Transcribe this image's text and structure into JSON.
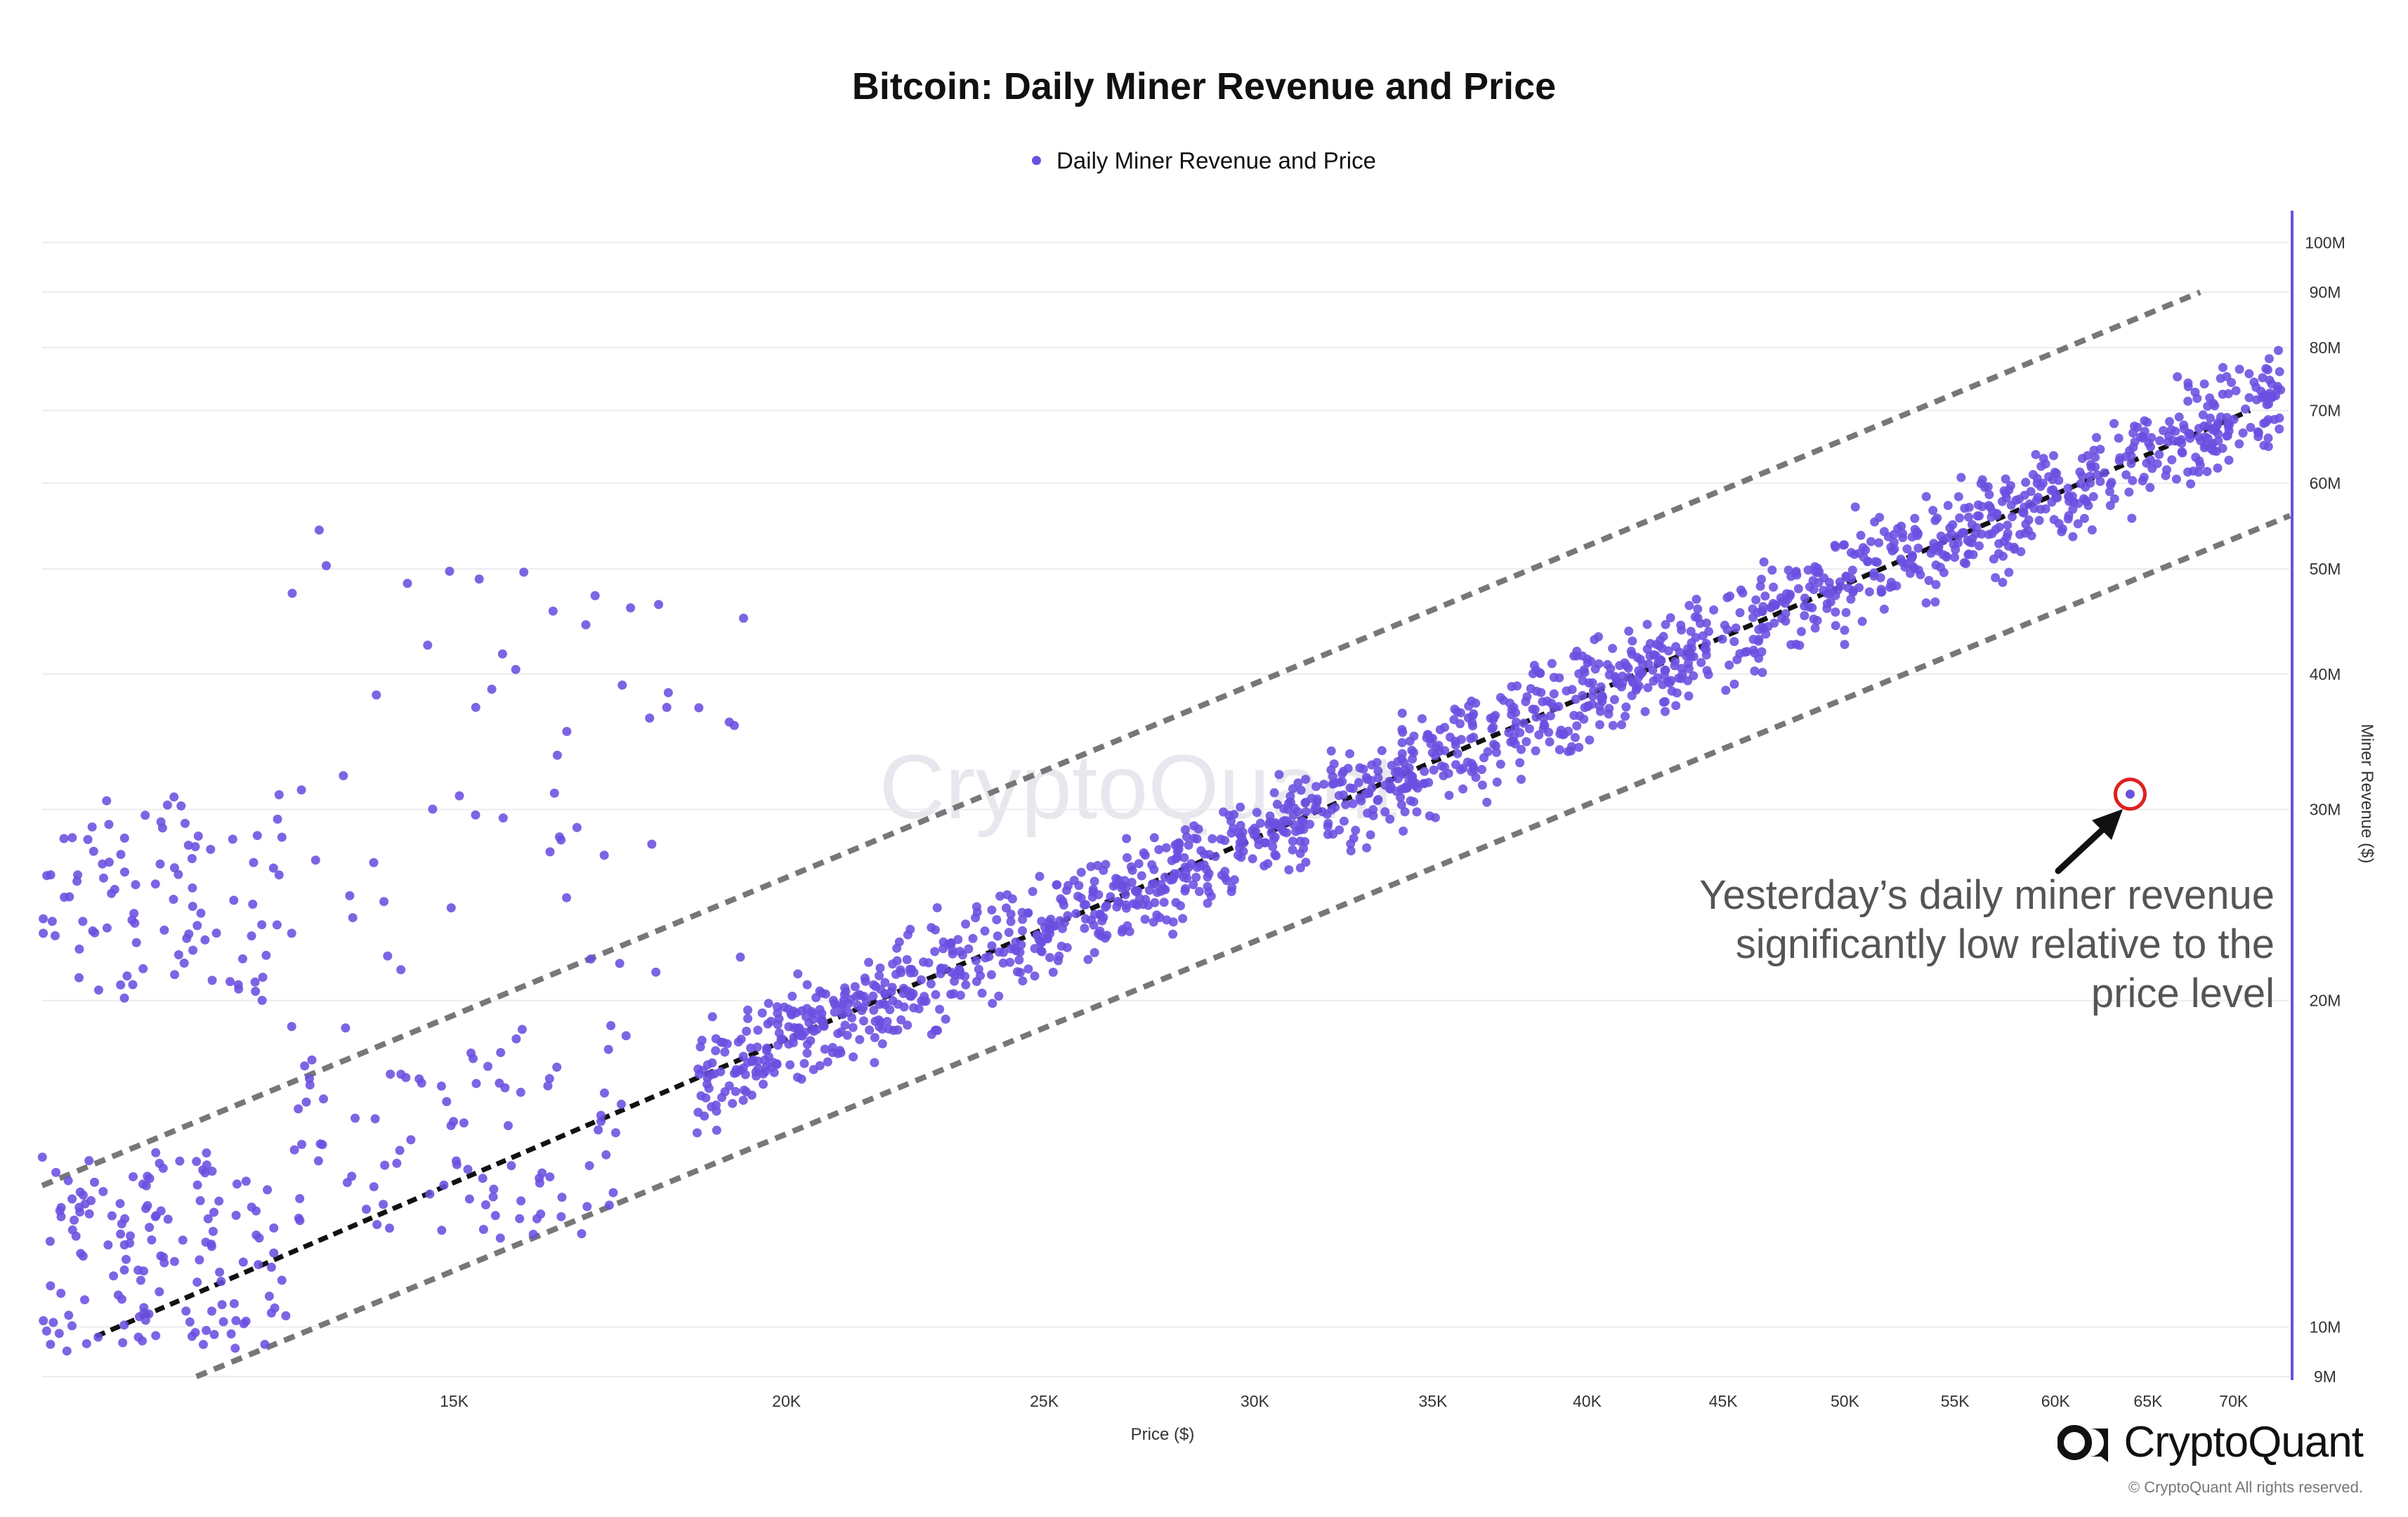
{
  "chart_data": {
    "type": "scatter",
    "title": "Bitcoin: Daily Miner Revenue and Price",
    "legend": [
      "Daily Miner Revenue and Price"
    ],
    "legend_position": "top-center",
    "xlabel": "Price ($)",
    "ylabel": "Miner Revenue ($)",
    "x_scale": "log",
    "y_scale": "log",
    "xlim": [
      10500,
      73500
    ],
    "ylim": [
      9000000,
      107000000
    ],
    "x_ticks": [
      "15K",
      "20K",
      "25K",
      "30K",
      "35K",
      "40K",
      "45K",
      "50K",
      "55K",
      "60K",
      "65K",
      "70K"
    ],
    "y_ticks": [
      "9M",
      "10M",
      "20M",
      "30M",
      "40M",
      "50M",
      "60M",
      "70M",
      "80M",
      "90M",
      "100M"
    ],
    "grid": "horizontal",
    "series": [
      {
        "name": "Daily Miner Revenue and Price",
        "color": "#6b4fe0",
        "clusters": [
          {
            "x_range": [
              10500,
              13000
            ],
            "y_range": [
              9500000,
              14500000
            ],
            "count": 140
          },
          {
            "x_range": [
              10500,
              13000
            ],
            "y_range": [
              20000000,
              31000000
            ],
            "count": 95
          },
          {
            "x_range": [
              13000,
              19500
            ],
            "y_range": [
              21000000,
              55000000
            ],
            "count": 55
          },
          {
            "x_range": [
              13000,
              17500
            ],
            "y_range": [
              12000000,
              19000000
            ],
            "count": 95
          },
          {
            "x_range": [
              18500,
              73000
            ],
            "y_range": [
              0.72,
              1.35
            ],
            "relative_to_trend": true,
            "count": 1550
          }
        ],
        "highlight": {
          "x": 64000,
          "y": 31000000
        }
      }
    ],
    "trend_line": {
      "x": [
        11000,
        71000
      ],
      "y": [
        9800000,
        70000000
      ],
      "style": "dashed",
      "color": "#111111"
    },
    "upper_band": {
      "x": [
        10500,
        68000
      ],
      "y": [
        13500000,
        90000000
      ],
      "style": "dashed",
      "color": "#777777"
    },
    "lower_band": {
      "x": [
        12000,
        73500
      ],
      "y": [
        9000000,
        56000000
      ],
      "style": "dashed",
      "color": "#777777"
    },
    "annotation": "Yesterday’s daily miner revenue\nsignificantly low relative to the\nprice level",
    "watermark": "CryptoQuant"
  },
  "brand": {
    "name": "CryptoQuant",
    "copyright": "© CryptoQuant All rights reserved."
  },
  "colors": {
    "points": "#6b4fe0",
    "axis": "#6b4fe0",
    "highlight": "#e02020",
    "grid": "#ececf0",
    "band": "#777777",
    "trend": "#111111"
  }
}
